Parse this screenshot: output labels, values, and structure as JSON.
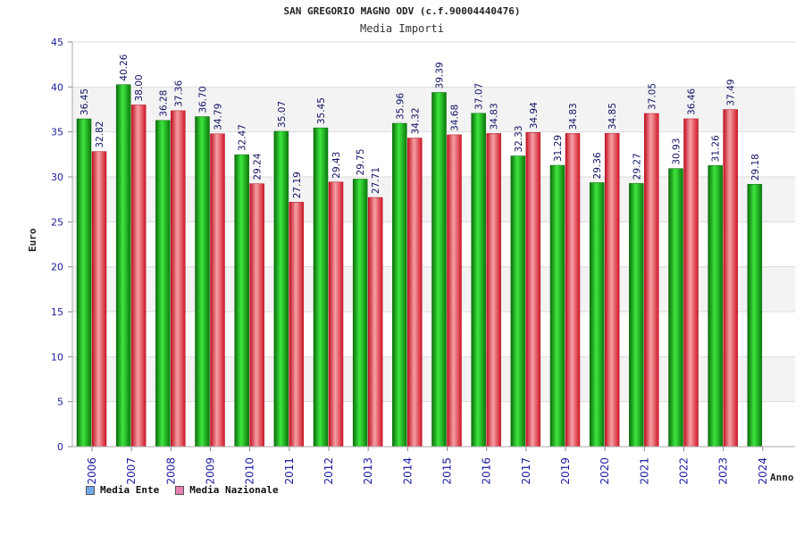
{
  "chart_data": {
    "type": "bar",
    "title": "SAN GREGORIO MAGNO ODV (c.f.90004440476)",
    "subtitle": "Media Importi",
    "xlabel": "Anno",
    "ylabel": "Euro",
    "ylim": [
      0,
      45
    ],
    "yticks": [
      0,
      5,
      10,
      15,
      20,
      25,
      30,
      35,
      40,
      45
    ],
    "grid": true,
    "legend_position": "bottom-left",
    "categories": [
      "2006",
      "2007",
      "2008",
      "2009",
      "2010",
      "2011",
      "2012",
      "2013",
      "2014",
      "2015",
      "2016",
      "2017",
      "2019",
      "2020",
      "2021",
      "2022",
      "2023",
      "2024"
    ],
    "series": [
      {
        "name": "Media Ente",
        "color": "#1aa51a",
        "legend_color": "#6fa8e8",
        "values": [
          36.45,
          40.26,
          36.28,
          36.7,
          32.47,
          35.07,
          35.45,
          29.75,
          35.96,
          39.39,
          37.07,
          32.33,
          31.29,
          29.36,
          29.27,
          30.93,
          31.26,
          29.18
        ],
        "labels": [
          "36.45",
          "40.26",
          "36.28",
          "36.70",
          "32.47",
          "35.07",
          "35.45",
          "29.75",
          "35.96",
          "39.39",
          "37.07",
          "32.33",
          "31.29",
          "29.36",
          "29.27",
          "30.93",
          "31.26",
          "29.18"
        ]
      },
      {
        "name": "Media Nazionale",
        "color": "#e8323c",
        "legend_color": "#e87fb0",
        "values": [
          32.82,
          38.0,
          37.36,
          34.79,
          29.24,
          27.19,
          29.43,
          27.71,
          34.32,
          34.68,
          34.83,
          34.94,
          34.83,
          34.85,
          37.05,
          36.46,
          37.49,
          null
        ],
        "labels": [
          "32.82",
          "38.00",
          "37.36",
          "34.79",
          "29.24",
          "27.19",
          "29.43",
          "27.71",
          "34.32",
          "34.68",
          "34.83",
          "34.94",
          "34.83",
          "34.85",
          "37.05",
          "36.46",
          "37.49",
          ""
        ]
      }
    ]
  }
}
